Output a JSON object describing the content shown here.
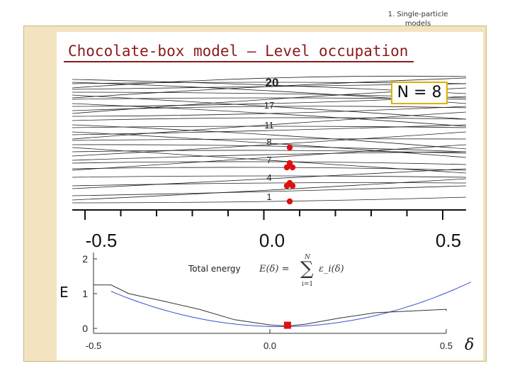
{
  "header": {
    "section": "1. Single-particle",
    "section2": "models"
  },
  "slide": {
    "title": "Chocolate-box model – Level occupation"
  },
  "upper_plot": {
    "level_labels": [
      "20",
      "17",
      "11",
      "8",
      "7",
      "4",
      "1"
    ],
    "x_ticks": [
      "-0.5",
      "0.0",
      "0.5"
    ],
    "n_label": "N = 8"
  },
  "lower_plot": {
    "y_label": "E",
    "y_ticks": [
      "2",
      "1",
      "0"
    ],
    "x_ticks": [
      "-0.5",
      "0.0",
      "0.5"
    ],
    "x_label": "δ",
    "annotation": "Total energy",
    "formula_lhs": "E(δ) =",
    "formula_sum_upper": "N",
    "formula_sum_lower": "i=1",
    "formula_term": "ε_i(δ)"
  },
  "colors": {
    "title": "#8b1a1a",
    "occupied": "#dd1111",
    "parabola": "#3a4fd0",
    "frame": "#f4e3bf"
  },
  "chart_data": [
    {
      "type": "line",
      "xlim": [
        -0.55,
        0.55
      ],
      "occupied_points_x": 0.05,
      "note_levels": [
        1,
        4,
        7,
        8,
        11,
        17,
        20
      ]
    },
    {
      "type": "line",
      "xlim": [
        -0.55,
        0.55
      ],
      "ylim": [
        0,
        2
      ],
      "series": [
        {
          "name": "",
          "x": [
            -0.55,
            -0.5,
            -0.45,
            -0.4,
            -0.3,
            -0.2,
            -0.1,
            0.0,
            0.05,
            0.1,
            0.2,
            0.3,
            0.4,
            0.5,
            0.55
          ],
          "values": [
            1.0,
            1.25,
            1.25,
            1.0,
            0.78,
            0.55,
            0.25,
            0.1,
            0.07,
            0.12,
            0.3,
            0.45,
            0.5,
            0.55,
            0.5
          ]
        }
      ],
      "marker": {
        "x": 0.05,
        "y": 0.07
      }
    }
  ]
}
